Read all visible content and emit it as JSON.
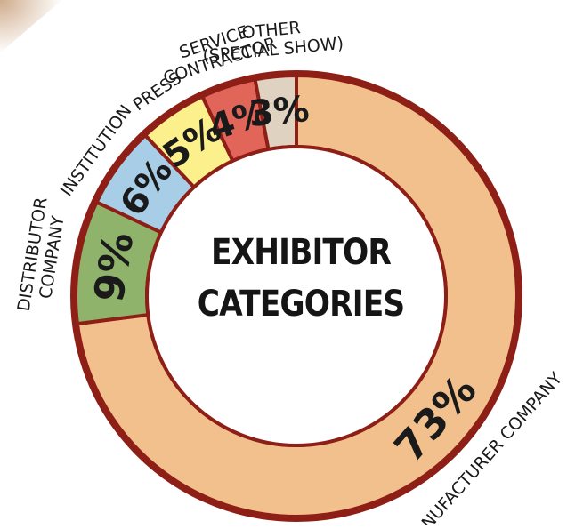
{
  "chart_data": {
    "type": "pie",
    "style": "donut",
    "title": "EXHIBITOR CATEGORIES",
    "categories": [
      "MANUFACTURER COMPANY",
      "DISTRIBUTOR COMPANY",
      "INSTITUTION",
      "PRESS",
      "SERVICE CONTRACTOR",
      "OTHER (SPECIAL SHOW)"
    ],
    "values": [
      73,
      9,
      6,
      5,
      4,
      3
    ],
    "value_labels": [
      "73%",
      "9%",
      "6%",
      "5%",
      "4%",
      "3%"
    ],
    "colors": [
      "#f2c08c",
      "#8fb36a",
      "#a8cde6",
      "#fbf08c",
      "#e2655a",
      "#dfd2c0"
    ],
    "outline_color": "#8e1f17",
    "legend": "none"
  }
}
